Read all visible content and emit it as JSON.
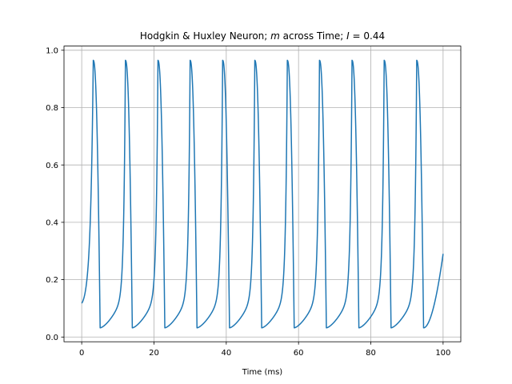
{
  "chart_data": {
    "type": "line",
    "title": "Hodgkin & Huxley Neuron; m across Time; I = 0.44",
    "title_parts": {
      "prefix": "Hodgkin & Huxley Neuron; ",
      "var_m": "m",
      "middle": " across Time; ",
      "var_i": "I",
      "suffix": " = 0.44"
    },
    "xlabel": "Time (ms)",
    "ylabel": "",
    "xlim": [
      -4.9,
      104.9
    ],
    "ylim": [
      -0.0165,
      1.0145
    ],
    "xticks": [
      0,
      20,
      40,
      60,
      80,
      100
    ],
    "yticks": [
      0.0,
      0.2,
      0.4,
      0.6,
      0.8,
      1.0
    ],
    "xtick_labels": [
      "0",
      "20",
      "40",
      "60",
      "80",
      "100"
    ],
    "ytick_labels": [
      "0.0",
      "0.2",
      "0.4",
      "0.6",
      "0.8",
      "1.0"
    ],
    "grid": true,
    "legend": "none",
    "line_color": "#1f77b4",
    "series": [
      {
        "start": {
          "t": 0.0,
          "m": 0.11
        },
        "spike_peak_times": [
          3.2,
          12.1,
          21.1,
          30.0,
          39.0,
          47.9,
          56.9,
          65.8,
          74.8,
          83.7,
          92.7
        ],
        "peak_value": 0.965,
        "trough_value": 0.032,
        "end": {
          "t": 100.0,
          "m": 0.29
        }
      }
    ]
  }
}
